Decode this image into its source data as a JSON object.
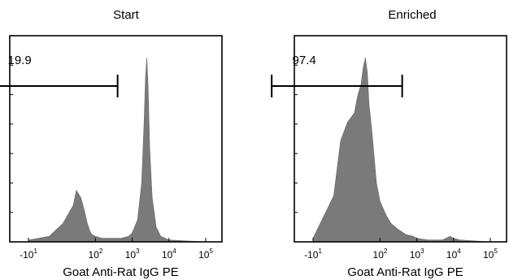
{
  "chart_data": [
    {
      "type": "area",
      "title": "Start",
      "xlabel": "Goat Anti-Rat IgG PE",
      "ylabel": "",
      "x_scale": "biexponential",
      "x_ticks": [
        {
          "value": -10,
          "base": "-10",
          "exp": "1"
        },
        {
          "value": 100,
          "base": "10",
          "exp": "2"
        },
        {
          "value": 1000,
          "base": "10",
          "exp": "3"
        },
        {
          "value": 10000,
          "base": "10",
          "exp": "4"
        },
        {
          "value": 100000,
          "base": "10",
          "exp": "5"
        }
      ],
      "gate": {
        "label": "19.9",
        "x_range": [
          -40,
          400
        ]
      },
      "histogram": {
        "x": [
          -10,
          5,
          15,
          25,
          30,
          35,
          40,
          50,
          60,
          70,
          80,
          100,
          150,
          200,
          300,
          500,
          800,
          1000,
          1400,
          1800,
          2100,
          2300,
          2500,
          2700,
          3000,
          3500,
          4500,
          6000,
          10000,
          100000
        ],
        "y": [
          1,
          3,
          10,
          20,
          28,
          26,
          24,
          17,
          10,
          6,
          4,
          3,
          2,
          2,
          2,
          2,
          3,
          5,
          12,
          32,
          65,
          90,
          100,
          85,
          50,
          24,
          8,
          3,
          1,
          0
        ]
      }
    },
    {
      "type": "area",
      "title": "Enriched",
      "xlabel": "Goat Anti-Rat IgG PE",
      "ylabel": "",
      "x_scale": "biexponential",
      "x_ticks": [
        {
          "value": -10,
          "base": "-10",
          "exp": "1"
        },
        {
          "value": 100,
          "base": "10",
          "exp": "2"
        },
        {
          "value": 1000,
          "base": "10",
          "exp": "3"
        },
        {
          "value": 10000,
          "base": "10",
          "exp": "4"
        },
        {
          "value": 100000,
          "base": "10",
          "exp": "5"
        }
      ],
      "gate": {
        "label": "97.4",
        "x_range": [
          -40,
          400
        ]
      },
      "histogram": {
        "x": [
          -10,
          5,
          10,
          15,
          20,
          25,
          30,
          35,
          40,
          45,
          50,
          60,
          70,
          80,
          100,
          150,
          200,
          300,
          500,
          800,
          1000,
          2000,
          5000,
          8000,
          10000,
          15000,
          100000
        ],
        "y": [
          2,
          25,
          55,
          65,
          70,
          80,
          85,
          95,
          100,
          92,
          75,
          60,
          45,
          32,
          22,
          14,
          10,
          7,
          4,
          3,
          2,
          1,
          1,
          3,
          2,
          1,
          0
        ]
      }
    }
  ]
}
